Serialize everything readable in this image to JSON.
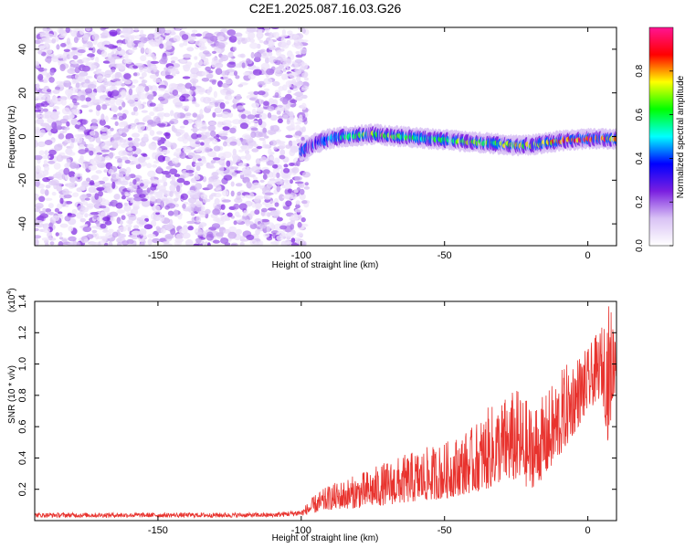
{
  "figure_title": "C2E1.2025.087.16.03.G26",
  "chart_data": [
    {
      "type": "heatmap",
      "title": "C2E1.2025.087.16.03.G26",
      "xlabel": "Height of straight line (km)",
      "ylabel": "Frequency (Hz)",
      "xlim": [
        -193,
        10
      ],
      "ylim": [
        -50,
        50
      ],
      "x_ticks": [
        -150,
        -100,
        -50,
        0
      ],
      "x_tick_labels": [
        "-150",
        "-100",
        "-50",
        "0"
      ],
      "y_ticks": [
        -40,
        -20,
        0,
        20,
        40
      ],
      "y_tick_labels": [
        "-40",
        "-20",
        "0",
        "20",
        "40"
      ],
      "colorbar": {
        "label": "Normalized spectral amplitude",
        "range": [
          0,
          1
        ],
        "ticks": [
          0,
          0.2,
          0.4,
          0.6,
          0.8
        ],
        "tick_labels": [
          "0.0",
          "0.2",
          "0.4",
          "0.6",
          "0.8"
        ],
        "colormap": [
          "#ffffff",
          "#d9c2f5",
          "#7a1fe0",
          "#0000ff",
          "#00ffff",
          "#00ff00",
          "#ffff00",
          "#ff0000",
          "#ff1493"
        ]
      },
      "noise_region": {
        "x_range": [
          -193,
          -98
        ],
        "y_range": [
          -50,
          50
        ],
        "level_range": [
          0.05,
          0.25
        ]
      },
      "signal_ridge": {
        "x": [
          -100,
          -95,
          -90,
          -85,
          -80,
          -75,
          -70,
          -65,
          -60,
          -55,
          -50,
          -45,
          -40,
          -35,
          -30,
          -25,
          -20,
          -15,
          -10,
          -5,
          0,
          5,
          10
        ],
        "y": [
          -7,
          -3,
          -1,
          0,
          0.5,
          1,
          0.5,
          0,
          -0.5,
          -1,
          -1.5,
          -2,
          -2.5,
          -3,
          -3.5,
          -4,
          -4,
          -3,
          -2,
          -1.5,
          -1,
          -1,
          -1
        ],
        "peak_amplitude": [
          0.15,
          0.3,
          0.45,
          0.5,
          0.6,
          0.65,
          0.7,
          0.6,
          0.55,
          0.6,
          0.55,
          0.65,
          0.7,
          0.6,
          0.65,
          0.7,
          0.75,
          0.7,
          0.8,
          0.85,
          0.9,
          0.85,
          0.8
        ]
      }
    },
    {
      "type": "line",
      "xlabel": "Height of straight line (km)",
      "ylabel": "SNR (10 * v/v)",
      "y_multiplier_label": "(x10",
      "y_multiplier_exp": "4",
      "xlim": [
        -193,
        10
      ],
      "ylim": [
        0,
        1.4
      ],
      "x_ticks": [
        -150,
        -100,
        -50,
        0
      ],
      "x_tick_labels": [
        "-150",
        "-100",
        "-50",
        "0"
      ],
      "y_ticks": [
        0.2,
        0.4,
        0.6,
        0.8,
        1.0,
        1.2,
        1.4
      ],
      "y_tick_labels": [
        "0.2",
        "0.4",
        "0.6",
        "0.8",
        "1.0",
        "1.2",
        "1.4"
      ],
      "series": [
        {
          "color": "#e8332e",
          "envelope_x": [
            -193,
            -110,
            -100,
            -95,
            -90,
            -80,
            -70,
            -60,
            -50,
            -40,
            -35,
            -30,
            -25,
            -20,
            -15,
            -10,
            -5,
            0,
            5,
            7,
            10
          ],
          "envelope_upper": [
            0.05,
            0.05,
            0.07,
            0.17,
            0.23,
            0.3,
            0.38,
            0.45,
            0.5,
            0.6,
            0.72,
            0.78,
            0.85,
            0.75,
            0.8,
            0.95,
            1.05,
            1.1,
            1.25,
            1.4,
            1.32
          ],
          "envelope_lower": [
            0.02,
            0.02,
            0.03,
            0.05,
            0.07,
            0.08,
            0.1,
            0.12,
            0.14,
            0.18,
            0.2,
            0.25,
            0.25,
            0.2,
            0.28,
            0.4,
            0.55,
            0.7,
            0.8,
            0.5,
            0.9
          ]
        }
      ]
    }
  ]
}
